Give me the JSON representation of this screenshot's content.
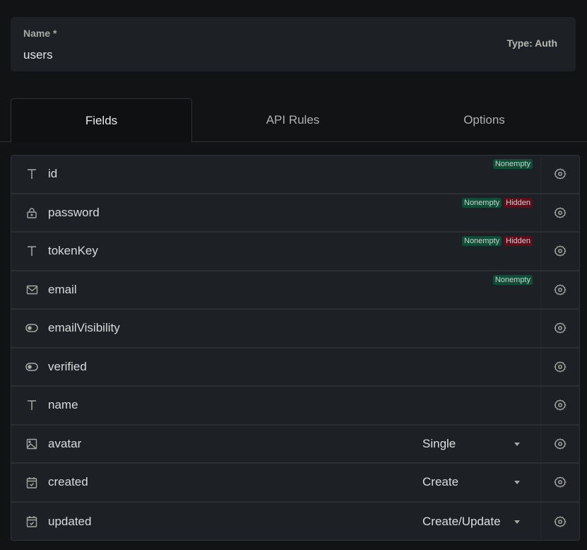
{
  "name_field": {
    "label": "Name *",
    "value": "users"
  },
  "type_label": "Type: Auth",
  "tabs": [
    {
      "label": "Fields",
      "active": true
    },
    {
      "label": "API Rules"
    },
    {
      "label": "Options"
    }
  ],
  "colors": {
    "nonempty": "#0f4d37",
    "hidden": "#5b0e1b"
  },
  "fields": [
    {
      "name": "id",
      "icon": "text-icon",
      "badges": [
        "Nonempty"
      ]
    },
    {
      "name": "password",
      "icon": "lock-icon",
      "badges": [
        "Nonempty",
        "Hidden"
      ]
    },
    {
      "name": "tokenKey",
      "icon": "text-icon",
      "badges": [
        "Nonempty",
        "Hidden"
      ]
    },
    {
      "name": "email",
      "icon": "mail-icon",
      "badges": [
        "Nonempty"
      ]
    },
    {
      "name": "emailVisibility",
      "icon": "toggle-icon",
      "badges": []
    },
    {
      "name": "verified",
      "icon": "toggle-icon",
      "badges": []
    },
    {
      "name": "name",
      "icon": "text-icon",
      "badges": []
    },
    {
      "name": "avatar",
      "icon": "image-icon",
      "badges": [],
      "select": "Single"
    },
    {
      "name": "created",
      "icon": "calendar-icon",
      "badges": [],
      "select": "Create"
    },
    {
      "name": "updated",
      "icon": "calendar-icon",
      "badges": [],
      "select": "Create/Update"
    }
  ]
}
